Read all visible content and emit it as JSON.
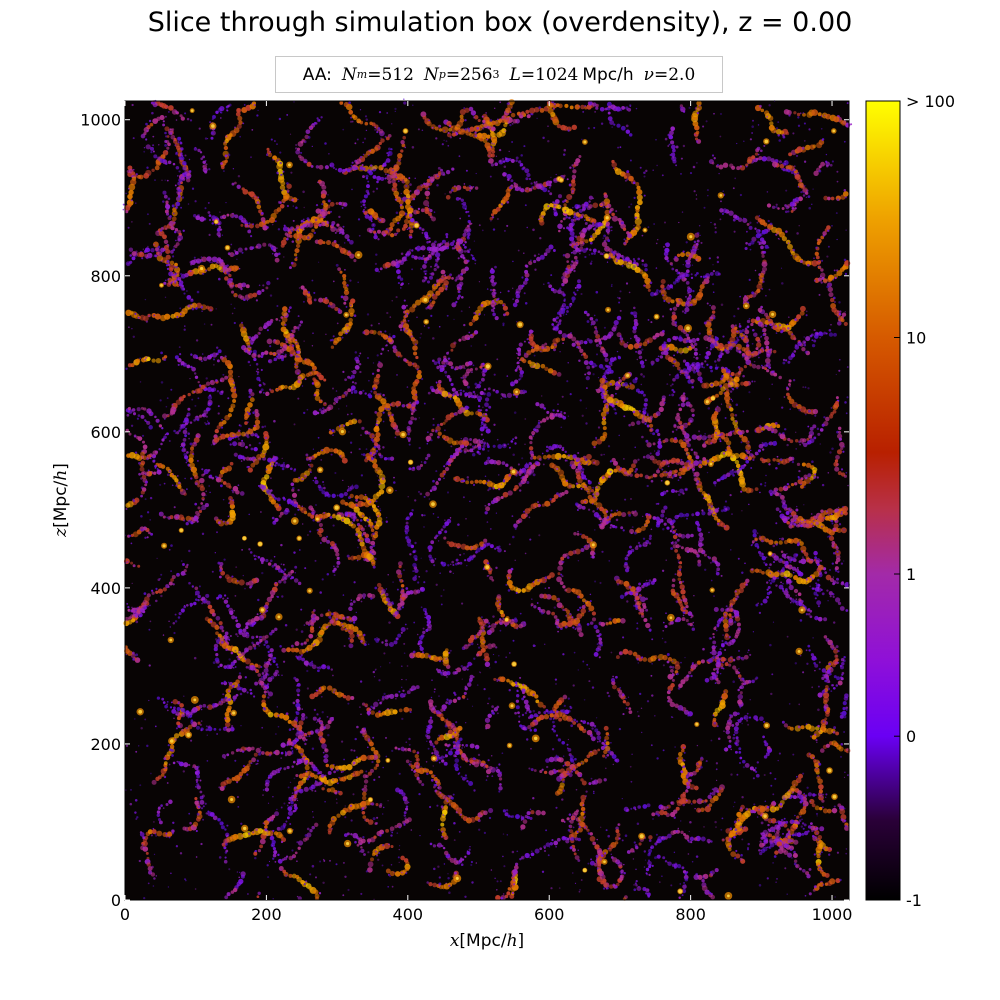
{
  "figure": {
    "title": "Slice through simulation box (overdensity), z = 0.00"
  },
  "legend": {
    "prefix": "AA:",
    "nm_symbol": "N",
    "nm_sub": "m",
    "nm_value": "=512",
    "np_symbol": "N",
    "np_sub": "p",
    "np_value": "=256",
    "np_exp": "3",
    "l_symbol": "L",
    "l_value": "=1024",
    "l_unit": "Mpc/h",
    "nu_symbol": "ν",
    "nu_value": "=2.0"
  },
  "chart_data": {
    "type": "heatmap",
    "title": "Slice through simulation box (overdensity), z = 0.00",
    "xlabel_var": "x",
    "xlabel_unit": "[Mpc/",
    "xlabel_h": "h",
    "xlabel_close": "]",
    "ylabel_var": "z",
    "ylabel_unit": "[Mpc/",
    "ylabel_h": "h",
    "ylabel_close": "]",
    "xlim": [
      0,
      1024
    ],
    "ylim": [
      0,
      1024
    ],
    "x_ticks": [
      0,
      200,
      400,
      600,
      800,
      1000
    ],
    "x_tick_labels": [
      "0",
      "200",
      "400",
      "600",
      "800",
      "1000"
    ],
    "y_ticks": [
      0,
      200,
      400,
      600,
      800,
      1000
    ],
    "y_tick_labels": [
      "0",
      "200",
      "400",
      "600",
      "800",
      "1000"
    ],
    "colormap": "gnuplot-like (black → violet → purple → red → orange → yellow)",
    "colorbar": {
      "ticks": [
        "-1",
        "0",
        "1",
        "10",
        "> 100"
      ],
      "tick_fraction_from_bottom": [
        0.0,
        0.205,
        0.408,
        0.704,
        1.0
      ]
    },
    "background_color": "#080404",
    "field": "overdensity",
    "redshift": "z = 0.00"
  }
}
